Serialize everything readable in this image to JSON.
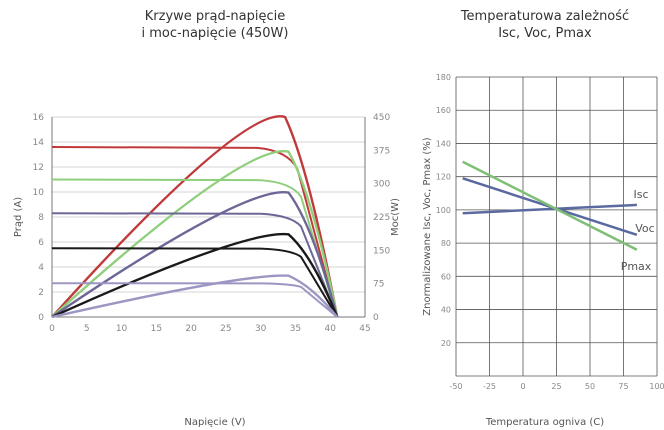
{
  "chart_data": [
    {
      "type": "line",
      "title_line1": "Krzywe prąd-napięcie",
      "title_line2": "i moc-napięcie (450W)",
      "xlabel": "Napięcie (V)",
      "ylabel": "Prąd (A)",
      "y2label": "Moc(W)",
      "xlim": [
        0,
        45
      ],
      "ylim": [
        0,
        16
      ],
      "y2lim": [
        0,
        450
      ],
      "xticks": [
        0,
        5,
        10,
        15,
        20,
        25,
        30,
        35,
        40,
        45
      ],
      "yticks": [
        0,
        2,
        4,
        6,
        8,
        10,
        12,
        14,
        16
      ],
      "y2ticks": [
        0,
        75,
        150,
        225,
        300,
        375,
        450
      ],
      "grid": "horizontal",
      "voc": 41,
      "series": [
        {
          "color": "#c0393b",
          "isc": 13.6,
          "vmp": 33.5,
          "pmax": 450
        },
        {
          "color": "#8fcf7c",
          "isc": 11.0,
          "vmp": 34.0,
          "pmax": 372
        },
        {
          "color": "#6c6796",
          "isc": 8.3,
          "vmp": 34.0,
          "pmax": 280
        },
        {
          "color": "#1a1a1a",
          "isc": 5.5,
          "vmp": 34.0,
          "pmax": 186
        },
        {
          "color": "#9b97c2",
          "isc": 2.7,
          "vmp": 34.0,
          "pmax": 93
        }
      ]
    },
    {
      "type": "line",
      "title_line1": "Temperaturowa zależność",
      "title_line2": "Isc, Voc, Pmax",
      "xlabel": "Temperatura ogniva (C)",
      "ylabel": "Znormalizowane Isc, Voc, Pmax (%)",
      "xlim": [
        -50,
        100
      ],
      "ylim": [
        0,
        180
      ],
      "xticks": [
        -50,
        -25,
        0,
        25,
        50,
        75,
        100
      ],
      "yticks": [
        20,
        40,
        60,
        80,
        100,
        120,
        140,
        160,
        180
      ],
      "grid": "both",
      "series": [
        {
          "name": "Isc",
          "color": "#5a6aa0",
          "x": [
            -45,
            85
          ],
          "y": [
            98,
            103
          ]
        },
        {
          "name": "Voc",
          "color": "#5a6aa0",
          "x": [
            -45,
            85
          ],
          "y": [
            119,
            85
          ]
        },
        {
          "name": "Pmax",
          "color": "#7fbf75",
          "x": [
            -45,
            85
          ],
          "y": [
            129,
            76
          ]
        }
      ]
    }
  ]
}
